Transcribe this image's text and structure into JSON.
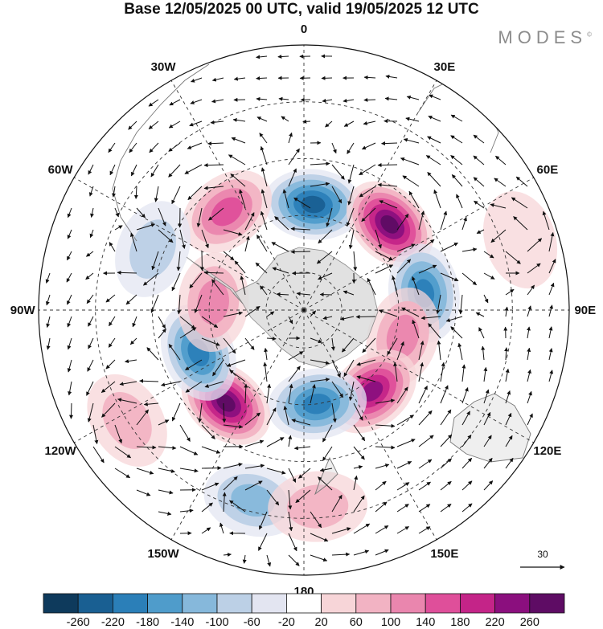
{
  "title": "Base 12/05/2025 00 UTC, valid 19/05/2025 12 UTC",
  "brand": "MODES",
  "brand_mark": "©",
  "longitude_labels": [
    {
      "text": "0",
      "lon": 0
    },
    {
      "text": "30E",
      "lon": 30
    },
    {
      "text": "60E",
      "lon": 60
    },
    {
      "text": "90E",
      "lon": 90
    },
    {
      "text": "120E",
      "lon": 120
    },
    {
      "text": "150E",
      "lon": 150
    },
    {
      "text": "180",
      "lon": 180
    },
    {
      "text": "150W",
      "lon": -150
    },
    {
      "text": "120W",
      "lon": -120
    },
    {
      "text": "90W",
      "lon": -90
    },
    {
      "text": "60W",
      "lon": -60
    },
    {
      "text": "30W",
      "lon": -30
    }
  ],
  "vector_reference": "30",
  "colorbar": {
    "ticks": [
      "-260",
      "-220",
      "-180",
      "-140",
      "-100",
      "-60",
      "-20",
      "20",
      "60",
      "100",
      "140",
      "180",
      "220",
      "260"
    ],
    "colors": [
      "#0e3a5c",
      "#195f92",
      "#2b7fb8",
      "#4f9ccb",
      "#86b8db",
      "#bcd0e6",
      "#e3e5f1",
      "#ffffff",
      "#f7d5d8",
      "#f2b3c3",
      "#ea86ae",
      "#df4f9a",
      "#c42488",
      "#8b0f7e",
      "#5e0c64"
    ]
  },
  "anomaly_centers": [
    {
      "name": "neg-0",
      "lon": 5,
      "rdeg": 28,
      "value": -250
    },
    {
      "name": "pos-45e",
      "lon": 45,
      "rdeg": 32,
      "value": 270
    },
    {
      "name": "neg-80e",
      "lon": 82,
      "rdeg": 32,
      "value": -200
    },
    {
      "name": "pos-105e",
      "lon": 105,
      "rdeg": 27,
      "value": 120
    },
    {
      "name": "pos-140e",
      "lon": 140,
      "rdeg": 28,
      "value": 230
    },
    {
      "name": "neg-175e",
      "lon": 172,
      "rdeg": 25,
      "value": -190
    },
    {
      "name": "pos-140w",
      "lon": -140,
      "rdeg": 32,
      "value": 270
    },
    {
      "name": "neg-115w",
      "lon": -112,
      "rdeg": 30,
      "value": -190
    },
    {
      "name": "pos-85w",
      "lon": -85,
      "rdeg": 24,
      "value": 140
    },
    {
      "name": "pos-40w",
      "lon": -38,
      "rdeg": 33,
      "value": 170
    },
    {
      "name": "neg-60w",
      "lon": -68,
      "rdeg": 43,
      "value": -90
    },
    {
      "name": "neg-160w",
      "lon": -165,
      "rdeg": 52,
      "value": -120
    },
    {
      "name": "pos-170e",
      "lon": 176,
      "rdeg": 52,
      "value": 100
    },
    {
      "name": "pos-70e",
      "lon": 72,
      "rdeg": 60,
      "value": 60
    },
    {
      "name": "pos-120w",
      "lon": -122,
      "rdeg": 55,
      "value": 80
    }
  ],
  "colors": {
    "grid": "#333333",
    "land": "#9a9a9a",
    "antarctica": "#d9d9d9"
  }
}
